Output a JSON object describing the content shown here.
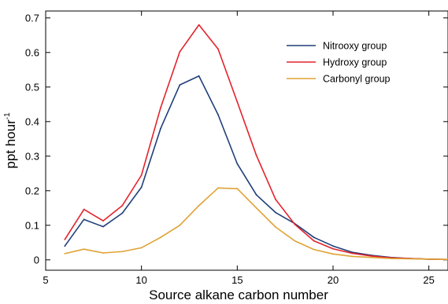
{
  "chart_data": {
    "type": "line",
    "xlabel": "Source alkane carbon number",
    "ylabel": "ppt hour",
    "ylabel_superscript": "-1",
    "xlim": [
      5,
      26
    ],
    "ylim": [
      -0.03,
      0.72
    ],
    "xticks": [
      "5",
      "10",
      "15",
      "20",
      "25"
    ],
    "yticks": [
      "0",
      "0.1",
      "0.2",
      "0.3",
      "0.4",
      "0.5",
      "0.6",
      "0.7"
    ],
    "grid": false,
    "legend_position": "top-right",
    "x": [
      6,
      7,
      8,
      9,
      10,
      11,
      12,
      13,
      14,
      15,
      16,
      17,
      18,
      19,
      20,
      21,
      22,
      23,
      24,
      25,
      26
    ],
    "series": [
      {
        "name": "Nitrooxy group",
        "color": "#1f3f7a",
        "values": [
          0.04,
          0.117,
          0.096,
          0.135,
          0.21,
          0.38,
          0.506,
          0.532,
          0.42,
          0.278,
          0.188,
          0.137,
          0.105,
          0.065,
          0.04,
          0.022,
          0.013,
          0.007,
          0.004,
          0.002,
          0.001
        ]
      },
      {
        "name": "Hydroxy group",
        "color": "#e3232c",
        "values": [
          0.059,
          0.146,
          0.113,
          0.157,
          0.245,
          0.44,
          0.602,
          0.68,
          0.61,
          0.457,
          0.302,
          0.175,
          0.103,
          0.055,
          0.032,
          0.019,
          0.011,
          0.006,
          0.004,
          0.002,
          0.001
        ]
      },
      {
        "name": "Carbonyl group",
        "color": "#e0a234",
        "values": [
          0.018,
          0.031,
          0.02,
          0.024,
          0.035,
          0.065,
          0.1,
          0.157,
          0.208,
          0.206,
          0.15,
          0.095,
          0.055,
          0.03,
          0.017,
          0.01,
          0.007,
          0.004,
          0.003,
          0.002,
          0.001
        ]
      }
    ]
  }
}
